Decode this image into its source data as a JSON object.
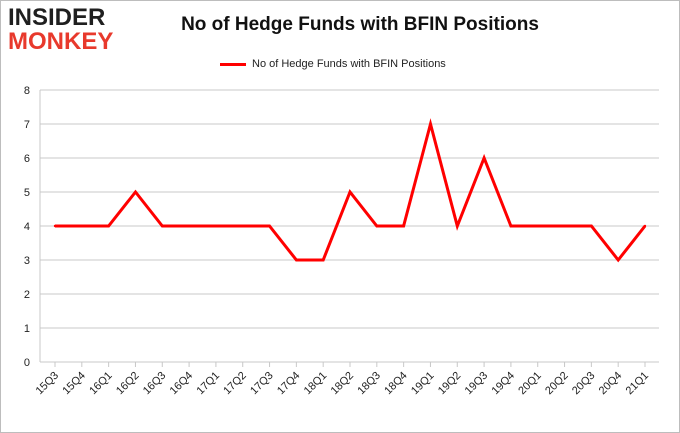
{
  "brand": {
    "line1": "INSIDER",
    "line2": "MONKEY"
  },
  "chart_data": {
    "type": "line",
    "title": "No of Hedge Funds with BFIN Positions",
    "xlabel": "",
    "ylabel": "",
    "ylim": [
      0,
      8
    ],
    "yticks": [
      0,
      1,
      2,
      3,
      4,
      5,
      6,
      7,
      8
    ],
    "grid": true,
    "legend_position": "top-center",
    "categories": [
      "15Q3",
      "15Q4",
      "16Q1",
      "16Q2",
      "16Q3",
      "16Q4",
      "17Q1",
      "17Q2",
      "17Q3",
      "17Q4",
      "18Q1",
      "18Q2",
      "18Q3",
      "18Q4",
      "19Q1",
      "19Q2",
      "19Q3",
      "19Q4",
      "20Q1",
      "20Q2",
      "20Q3",
      "20Q4",
      "21Q1"
    ],
    "series": [
      {
        "name": "No of Hedge Funds with BFIN Positions",
        "color": "#ff0000",
        "values": [
          4,
          4,
          4,
          5,
          4,
          4,
          4,
          4,
          4,
          3,
          3,
          5,
          4,
          4,
          7,
          4,
          6,
          4,
          4,
          4,
          4,
          3,
          4
        ]
      }
    ]
  }
}
